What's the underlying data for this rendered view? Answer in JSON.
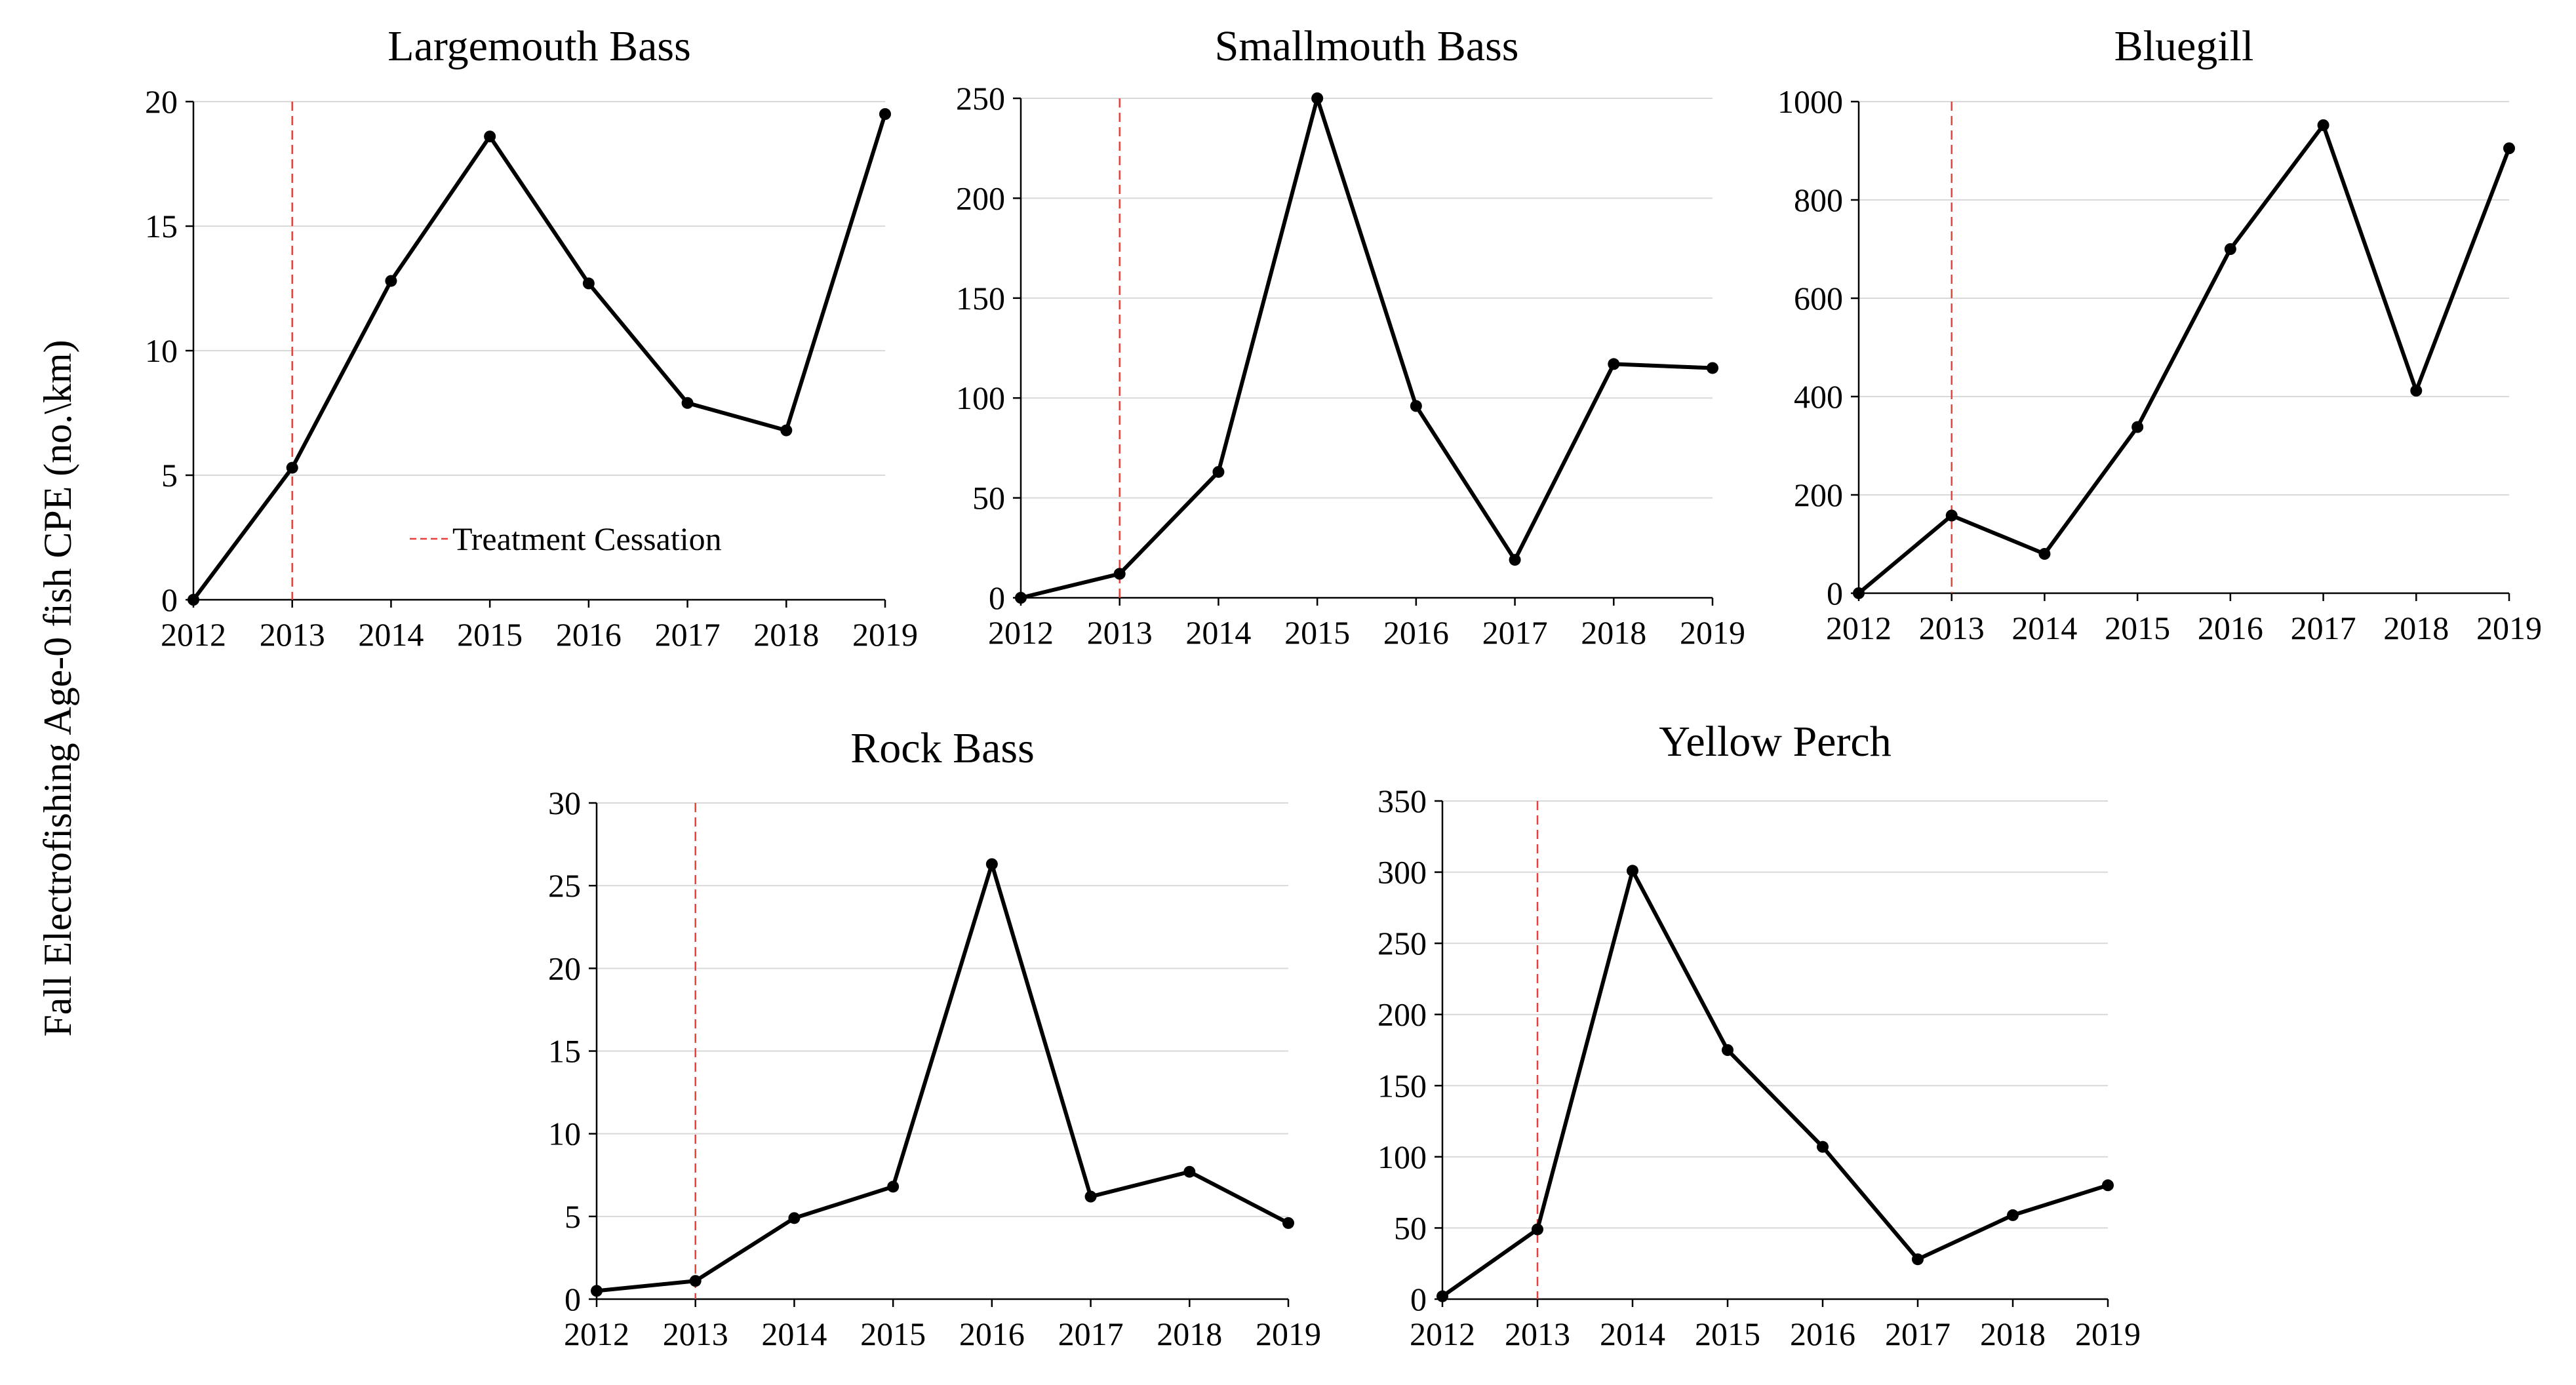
{
  "y_axis_label": "Fall Electrofishing Age-0  fish CPE (no.\\km)",
  "legend": {
    "label": "Treatment Cessation"
  },
  "colors": {
    "line": "#000000",
    "marker": "#000000",
    "treatment": "#e8413c",
    "grid": "#d9d9d9"
  },
  "chart_data": [
    {
      "type": "line",
      "title": "Largemouth Bass",
      "categories": [
        "2012",
        "2013",
        "2014",
        "2015",
        "2016",
        "2017",
        "2018",
        "2019"
      ],
      "values": [
        0,
        5.3,
        12.8,
        18.6,
        12.7,
        7.9,
        6.8,
        19.5
      ],
      "ylim": [
        0,
        20
      ],
      "yticks": [
        0,
        5,
        10,
        15,
        20
      ],
      "treatment_year": "2013",
      "xlabel": "",
      "ylabel": ""
    },
    {
      "type": "line",
      "title": "Smallmouth Bass",
      "categories": [
        "2012",
        "2013",
        "2014",
        "2015",
        "2016",
        "2017",
        "2018",
        "2019"
      ],
      "values": [
        0,
        12,
        63,
        250,
        96,
        19,
        117,
        115
      ],
      "ylim": [
        0,
        250
      ],
      "yticks": [
        0,
        50,
        100,
        150,
        200,
        250
      ],
      "treatment_year": "2013",
      "xlabel": "",
      "ylabel": ""
    },
    {
      "type": "line",
      "title": "Bluegill",
      "categories": [
        "2012",
        "2013",
        "2014",
        "2015",
        "2016",
        "2017",
        "2018",
        "2019"
      ],
      "values": [
        0,
        158,
        80,
        338,
        700,
        952,
        412,
        905
      ],
      "ylim": [
        0,
        1000
      ],
      "yticks": [
        0,
        200,
        400,
        600,
        800,
        1000
      ],
      "treatment_year": "2013",
      "xlabel": "",
      "ylabel": ""
    },
    {
      "type": "line",
      "title": "Rock Bass",
      "categories": [
        "2012",
        "2013",
        "2014",
        "2015",
        "2016",
        "2017",
        "2018",
        "2019"
      ],
      "values": [
        0.5,
        1.1,
        4.9,
        6.8,
        26.3,
        6.2,
        7.7,
        4.6
      ],
      "ylim": [
        0,
        30
      ],
      "yticks": [
        0,
        5,
        10,
        15,
        20,
        25,
        30
      ],
      "treatment_year": "2013",
      "xlabel": "",
      "ylabel": ""
    },
    {
      "type": "line",
      "title": "Yellow Perch",
      "categories": [
        "2012",
        "2013",
        "2014",
        "2015",
        "2016",
        "2017",
        "2018",
        "2019"
      ],
      "values": [
        2,
        49,
        301,
        175,
        107,
        28,
        59,
        80
      ],
      "ylim": [
        0,
        350
      ],
      "yticks": [
        0,
        50,
        100,
        150,
        200,
        250,
        300,
        350
      ],
      "treatment_year": "2013",
      "xlabel": "",
      "ylabel": ""
    }
  ]
}
